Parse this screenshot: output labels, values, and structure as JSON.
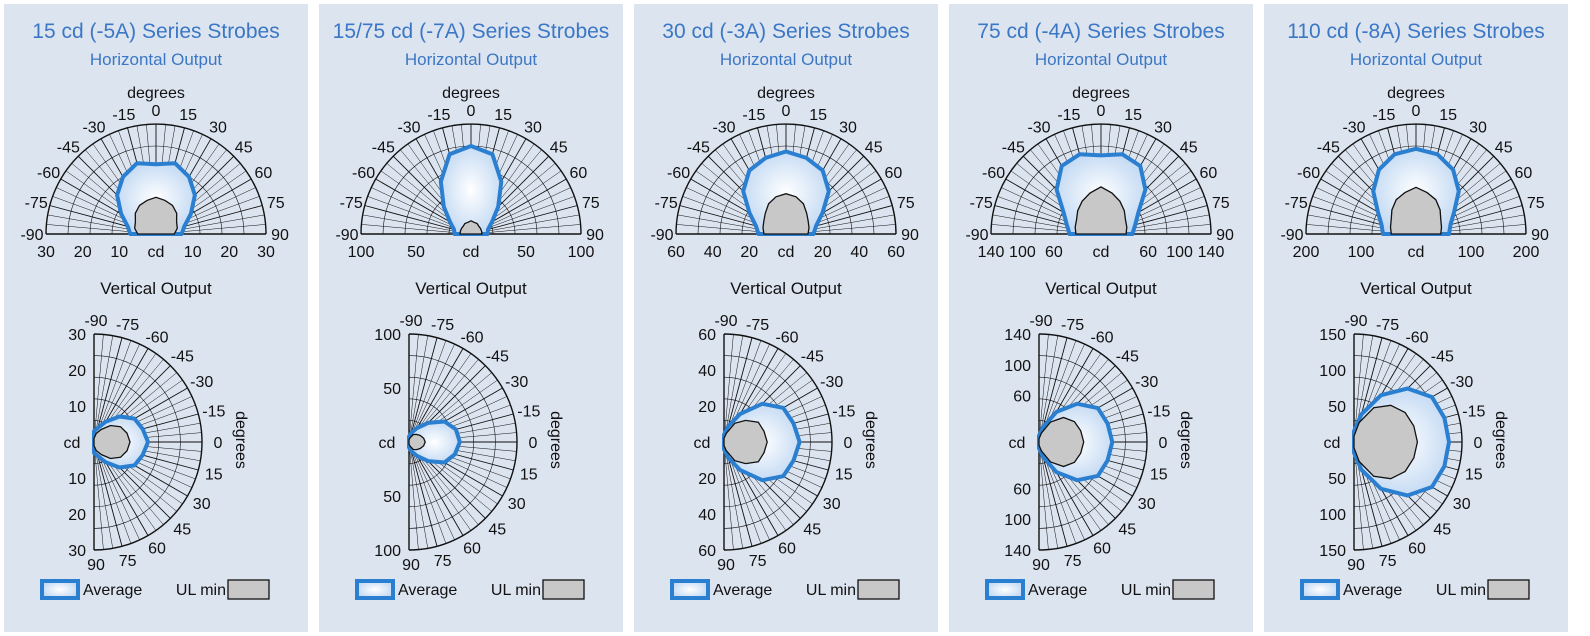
{
  "legend": {
    "average_label": "Average",
    "ul_min_label": "UL min"
  },
  "colors": {
    "panel_bg": "#dce4f0",
    "title": "#3b77c4",
    "average_outline": "#2a7fd0",
    "average_fill": "#bcd5f2",
    "ul_fill": "#c8c8c8"
  },
  "chart_data": [
    {
      "type": "polar",
      "title": "15 cd (-5A) Series Strobes",
      "horizontal": {
        "subtitle": "Horizontal Output",
        "angle_label": "degrees",
        "radial_label": "cd",
        "angle_ticks": [
          "-90",
          "-75",
          "-60",
          "-45",
          "-30",
          "-15",
          "0",
          "15",
          "30",
          "45",
          "60",
          "75",
          "90"
        ],
        "radial_ticks": [
          "30",
          "20",
          "10"
        ],
        "rmax": 30,
        "angles": [
          -90,
          -75,
          -60,
          -45,
          -30,
          -15,
          0,
          15,
          30,
          45,
          60,
          75,
          90
        ],
        "average": [
          7,
          8,
          11,
          15,
          18,
          20,
          19,
          20,
          18,
          15,
          11,
          8,
          7
        ],
        "ul_min": [
          5,
          6,
          6.5,
          8,
          9,
          9.5,
          10,
          9.5,
          9,
          8,
          6.5,
          6,
          5
        ]
      },
      "vertical": {
        "subtitle": "Vertical Output",
        "angle_label": "degrees",
        "radial_label": "cd",
        "angle_ticks": [
          "-90",
          "-75",
          "-60",
          "-45",
          "-30",
          "-15",
          "0",
          "15",
          "30",
          "45",
          "60",
          "75",
          "90"
        ],
        "radial_ticks": [
          "30",
          "20",
          "10"
        ],
        "rmax": 30,
        "angles": [
          -90,
          -75,
          -60,
          -45,
          -30,
          -15,
          0,
          15,
          30,
          45,
          60,
          75,
          90
        ],
        "average": [
          3,
          4,
          6.5,
          10,
          13,
          14,
          15,
          14,
          13,
          10,
          6.5,
          4,
          3
        ],
        "ul_min": [
          1,
          2.5,
          4,
          6.5,
          8.5,
          9.5,
          10,
          9.5,
          8.5,
          6.5,
          4,
          2.5,
          1
        ]
      }
    },
    {
      "type": "polar",
      "title": "15/75 cd (-7A) Series Strobes",
      "horizontal": {
        "subtitle": "Horizontal Output",
        "angle_label": "degrees",
        "radial_label": "cd",
        "angle_ticks": [
          "-90",
          "-75",
          "-60",
          "-45",
          "-30",
          "-15",
          "0",
          "15",
          "30",
          "45",
          "60",
          "75",
          "90"
        ],
        "radial_ticks": [
          "100",
          "50"
        ],
        "rmax": 100,
        "angles": [
          -90,
          -75,
          -60,
          -45,
          -30,
          -15,
          0,
          15,
          30,
          45,
          60,
          75,
          90
        ],
        "average": [
          15,
          16,
          22,
          35,
          55,
          75,
          80,
          75,
          55,
          35,
          22,
          16,
          15
        ],
        "ul_min": [
          10,
          10,
          10,
          10,
          11,
          11,
          12,
          11,
          11,
          10,
          10,
          10,
          10
        ]
      },
      "vertical": {
        "subtitle": "Vertical Output",
        "angle_label": "degrees",
        "radial_label": "cd",
        "angle_ticks": [
          "-90",
          "-75",
          "-60",
          "-45",
          "-30",
          "-15",
          "0",
          "15",
          "30",
          "45",
          "60",
          "75",
          "90"
        ],
        "radial_ticks": [
          "100",
          "50"
        ],
        "rmax": 100,
        "angles": [
          -90,
          -75,
          -60,
          -45,
          -30,
          -15,
          0,
          15,
          30,
          45,
          60,
          75,
          90
        ],
        "average": [
          5,
          9,
          15,
          25,
          38,
          45,
          47,
          44,
          38,
          25,
          15,
          9,
          5
        ],
        "ul_min": [
          2,
          4,
          8,
          10,
          12,
          14,
          15,
          14,
          12,
          10,
          8,
          4,
          2
        ]
      }
    },
    {
      "type": "polar",
      "title": "30 cd (-3A) Series Strobes",
      "horizontal": {
        "subtitle": "Horizontal Output",
        "angle_label": "degrees",
        "radial_label": "cd",
        "angle_ticks": [
          "-90",
          "-75",
          "-60",
          "-45",
          "-30",
          "-15",
          "0",
          "15",
          "30",
          "45",
          "60",
          "75",
          "90"
        ],
        "radial_ticks": [
          "60",
          "40",
          "20"
        ],
        "rmax": 60,
        "angles": [
          -90,
          -75,
          -60,
          -45,
          -30,
          -15,
          0,
          15,
          30,
          45,
          60,
          75,
          90
        ],
        "average": [
          15,
          17,
          23,
          33,
          40,
          43,
          45,
          43,
          40,
          33,
          23,
          17,
          15
        ],
        "ul_min": [
          12,
          13,
          14,
          16,
          19,
          21,
          22,
          21,
          19,
          16,
          14,
          13,
          12
        ]
      },
      "vertical": {
        "subtitle": "Vertical Output",
        "angle_label": "degrees",
        "radial_label": "cd",
        "angle_ticks": [
          "-90",
          "-75",
          "-60",
          "-45",
          "-30",
          "-15",
          "0",
          "15",
          "30",
          "45",
          "60",
          "75",
          "90"
        ],
        "radial_ticks": [
          "60",
          "40",
          "20"
        ],
        "rmax": 60,
        "angles": [
          -90,
          -75,
          -60,
          -45,
          -30,
          -15,
          0,
          15,
          30,
          45,
          60,
          75,
          90
        ],
        "average": [
          4,
          9,
          18,
          30,
          38,
          40,
          42,
          40,
          38,
          30,
          18,
          9,
          4
        ],
        "ul_min": [
          2,
          5,
          12,
          17,
          22,
          23,
          24,
          23,
          22,
          17,
          12,
          5,
          2
        ]
      }
    },
    {
      "type": "polar",
      "title": "75 cd (-4A) Series Strobes",
      "horizontal": {
        "subtitle": "Horizontal Output",
        "angle_label": "degrees",
        "radial_label": "cd",
        "angle_ticks": [
          "-90",
          "-75",
          "-60",
          "-45",
          "-30",
          "-15",
          "0",
          "15",
          "30",
          "45",
          "60",
          "75",
          "90"
        ],
        "radial_ticks": [
          "140",
          "100",
          "60"
        ],
        "rmax": 140,
        "angles": [
          -90,
          -75,
          -60,
          -45,
          -30,
          -15,
          0,
          15,
          30,
          45,
          60,
          75,
          90
        ],
        "average": [
          40,
          45,
          55,
          80,
          100,
          105,
          100,
          105,
          100,
          80,
          55,
          45,
          40
        ],
        "ul_min": [
          32,
          34,
          36,
          42,
          48,
          54,
          60,
          54,
          48,
          42,
          36,
          34,
          32
        ]
      },
      "vertical": {
        "subtitle": "Vertical Output",
        "angle_label": "degrees",
        "radial_label": "cd",
        "angle_ticks": [
          "-90",
          "-75",
          "-60",
          "-45",
          "-30",
          "-15",
          "0",
          "15",
          "30",
          "45",
          "60",
          "75",
          "90"
        ],
        "radial_ticks": [
          "140",
          "100",
          "60"
        ],
        "rmax": 140,
        "angles": [
          -90,
          -75,
          -60,
          -45,
          -30,
          -15,
          0,
          15,
          30,
          45,
          60,
          75,
          90
        ],
        "average": [
          8,
          20,
          45,
          70,
          88,
          92,
          95,
          92,
          88,
          70,
          45,
          20,
          8
        ],
        "ul_min": [
          4,
          12,
          30,
          45,
          53,
          56,
          58,
          56,
          53,
          45,
          30,
          12,
          4
        ]
      }
    },
    {
      "type": "polar",
      "title": "110 cd (-8A) Series Strobes",
      "horizontal": {
        "subtitle": "Horizontal Output",
        "angle_label": "degrees",
        "radial_label": "cd",
        "angle_ticks": [
          "-90",
          "-75",
          "-60",
          "-45",
          "-30",
          "-15",
          "0",
          "15",
          "30",
          "45",
          "60",
          "75",
          "90"
        ],
        "radial_ticks": [
          "200",
          "100"
        ],
        "rmax": 200,
        "angles": [
          -90,
          -75,
          -60,
          -45,
          -30,
          -15,
          0,
          15,
          30,
          45,
          60,
          75,
          90
        ],
        "average": [
          60,
          65,
          80,
          110,
          135,
          150,
          155,
          150,
          135,
          110,
          80,
          65,
          60
        ],
        "ul_min": [
          45,
          48,
          52,
          62,
          72,
          78,
          85,
          78,
          72,
          62,
          52,
          48,
          45
        ]
      },
      "vertical": {
        "subtitle": "Vertical Output",
        "angle_label": "degrees",
        "radial_label": "cd",
        "angle_ticks": [
          "-90",
          "-75",
          "-60",
          "-45",
          "-30",
          "-15",
          "0",
          "15",
          "30",
          "45",
          "60",
          "75",
          "90"
        ],
        "radial_ticks": [
          "150",
          "100",
          "50"
        ],
        "rmax": 150,
        "angles": [
          -90,
          -75,
          -60,
          -45,
          -30,
          -15,
          0,
          15,
          30,
          45,
          60,
          75,
          90
        ],
        "average": [
          15,
          40,
          75,
          105,
          125,
          130,
          132,
          130,
          125,
          105,
          75,
          40,
          15
        ],
        "ul_min": [
          8,
          28,
          55,
          72,
          82,
          86,
          88,
          86,
          82,
          72,
          55,
          28,
          8
        ]
      }
    }
  ]
}
